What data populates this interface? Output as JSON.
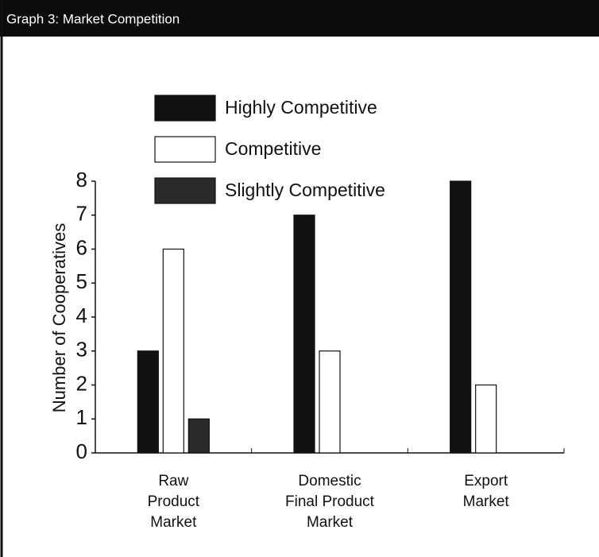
{
  "chart_data": {
    "type": "bar",
    "title": "Graph 3: Market Competition",
    "y_label": "Number of Cooperatives",
    "categories": [
      [
        "Raw",
        "Product",
        "Market"
      ],
      [
        "Domestic",
        "Final Product",
        "Market"
      ],
      [
        "Export",
        "Market"
      ]
    ],
    "series": [
      {
        "name": "Highly Competitive",
        "color": "#111111",
        "values": [
          3,
          7,
          8
        ]
      },
      {
        "name": "Competitive",
        "color": "#ffffff",
        "values": [
          6,
          3,
          2
        ]
      },
      {
        "name": "Slightly Competitive",
        "color": "#2a2a2a",
        "values": [
          1,
          0,
          0
        ]
      }
    ],
    "ylim": [
      0,
      8
    ],
    "yticks": [
      0,
      1,
      2,
      3,
      4,
      5,
      6,
      7,
      8
    ],
    "grid": false,
    "legend": "top"
  }
}
